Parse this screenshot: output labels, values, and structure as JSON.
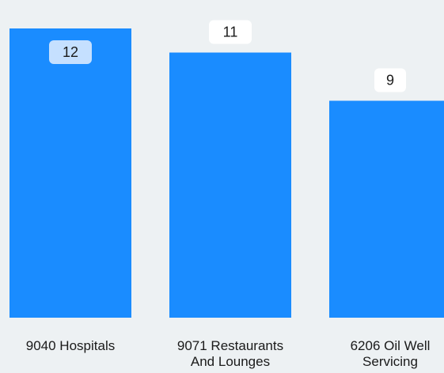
{
  "chart_data": {
    "type": "bar",
    "categories": [
      [
        "9040 Hospitals"
      ],
      [
        "9071 Restaurants",
        "And Lounges"
      ],
      [
        "6206 Oil Well",
        "Servicing"
      ]
    ],
    "values": [
      12,
      11,
      9
    ],
    "value_labels": [
      "12",
      "11",
      "9"
    ],
    "title": "",
    "xlabel": "",
    "ylabel": "",
    "ylim": [
      0,
      12
    ],
    "grid": false,
    "legend": "none",
    "colors": {
      "bar": "#1a8cff",
      "background": "#edf1f3",
      "label_box": "#ffffff",
      "label_box_inside": "#c5e0ff"
    }
  }
}
